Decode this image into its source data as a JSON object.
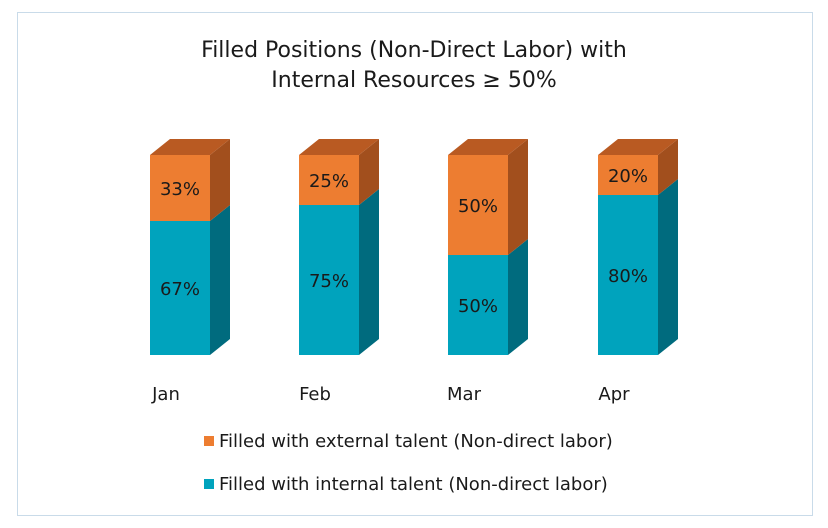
{
  "chart_data": {
    "type": "bar",
    "stacked": true,
    "title_lines": [
      "Filled Positions (Non-Direct Labor) with",
      "Internal Resources ≥ 50%"
    ],
    "categories": [
      "Jan",
      "Feb",
      "Mar",
      "Apr"
    ],
    "series": [
      {
        "name": "Filled with internal talent (Non-direct labor)",
        "values": [
          67,
          75,
          50,
          80
        ],
        "labels": [
          "67%",
          "75%",
          "50%",
          "80%"
        ],
        "color": "#00a3bd"
      },
      {
        "name": "Filled with external talent (Non-direct labor)",
        "values": [
          33,
          25,
          50,
          20
        ],
        "labels": [
          "33%",
          "25%",
          "50%",
          "20%"
        ],
        "color": "#ed7d31"
      }
    ],
    "ylim": [
      0,
      100
    ],
    "grid": false,
    "legend_position": "bottom",
    "style": "3d-column"
  },
  "colors": {
    "internal_front": "#00a3bd",
    "internal_side": "#006b7e",
    "external_front": "#ed7d31",
    "external_side": "#a24f1d",
    "external_top": "#b95a22",
    "border": "#c9dbe9"
  },
  "legend": [
    {
      "label": "Filled with external talent (Non-direct labor)",
      "color": "#ed7d31"
    },
    {
      "label": "Filled with internal talent (Non-direct labor)",
      "color": "#00a3bd"
    }
  ]
}
